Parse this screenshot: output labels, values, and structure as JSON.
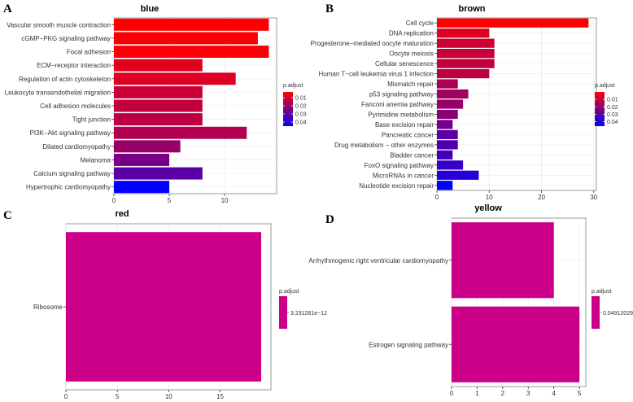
{
  "chart_data": [
    {
      "panel": "A",
      "type": "bar",
      "orientation": "horizontal",
      "title": "blue",
      "categories": [
        "Vascular smooth muscle contraction",
        "cGMP−PKG signaling pathway",
        "Focal adhesion",
        "ECM−receptor interaction",
        "Regulation of actin cytoskeleton",
        "Leukocyte transendothelial migration",
        "Cell adhesion molecules",
        "Tight junction",
        "PI3K−Akt signaling pathway",
        "Dilated cardiomyopathy",
        "Melanoma",
        "Calcium signaling pathway",
        "Hypertrophic cardiomyopathy"
      ],
      "values": [
        14,
        13,
        14,
        8,
        11,
        8,
        8,
        8,
        12,
        6,
        5,
        8,
        5
      ],
      "p_adjust": [
        0.003,
        0.004,
        0.004,
        0.008,
        0.009,
        0.012,
        0.013,
        0.014,
        0.016,
        0.02,
        0.025,
        0.03,
        0.045
      ],
      "xlim": [
        0,
        14.7
      ],
      "xticks": [
        "0",
        "5",
        "10"
      ],
      "xtick_values": [
        0,
        5,
        10
      ],
      "legend": {
        "title": "p.adjust",
        "labels": [
          "0.01",
          "0.02",
          "0.03",
          "0.04"
        ],
        "values": [
          0.01,
          0.02,
          0.03,
          0.04
        ],
        "range": [
          0.003,
          0.045
        ]
      }
    },
    {
      "panel": "B",
      "type": "bar",
      "orientation": "horizontal",
      "title": "brown",
      "categories": [
        "Cell cycle",
        "DNA replication",
        "Progesterone−mediated oocyte maturation",
        "Oocyte meiosis",
        "Cellular senescence",
        "Human T−cell leukemia virus 1 infection",
        "Mismatch repair",
        "p53 signaling pathway",
        "Fanconi anemia pathway",
        "Pyrimidine metabolism",
        "Base excision repair",
        "Pancreatic cancer",
        "Drug metabolism − other enzymes",
        "Bladder cancer",
        "FoxO signaling pathway",
        "MicroRNAs in cancer",
        "Nucleotide excision repair"
      ],
      "values": [
        29,
        10,
        11,
        11,
        11,
        10,
        4,
        6,
        5,
        4,
        3,
        4,
        4,
        3,
        5,
        8,
        3
      ],
      "p_adjust": [
        0.0,
        0.006,
        0.009,
        0.01,
        0.011,
        0.012,
        0.015,
        0.017,
        0.019,
        0.021,
        0.025,
        0.03,
        0.032,
        0.034,
        0.036,
        0.039,
        0.046
      ],
      "xlim": [
        0,
        30.5
      ],
      "xticks": [
        "0",
        "10",
        "20",
        "30"
      ],
      "xtick_values": [
        0,
        10,
        20,
        30
      ],
      "legend": {
        "title": "p.adjust",
        "labels": [
          "0.01",
          "0.02",
          "0.03",
          "0.04"
        ],
        "values": [
          0.01,
          0.02,
          0.03,
          0.04
        ],
        "range": [
          0.0,
          0.046
        ]
      }
    },
    {
      "panel": "C",
      "type": "bar",
      "orientation": "horizontal",
      "title": "red",
      "categories": [
        "Ribosome"
      ],
      "values": [
        19
      ],
      "p_adjust": [
        3.231281e-12
      ],
      "xlim": [
        0,
        19.95
      ],
      "xticks": [
        "0",
        "5",
        "10",
        "15"
      ],
      "xtick_values": [
        0,
        5,
        10,
        15
      ],
      "legend": {
        "title": "p.adjust",
        "labels": [
          "3.231281e−12"
        ],
        "values": [
          3.231281e-12
        ]
      }
    },
    {
      "panel": "D",
      "type": "bar",
      "orientation": "horizontal",
      "title": "yellow",
      "categories": [
        "Arrhythmogenic right ventricular cardiomyopathy",
        "Estrogen signaling pathway"
      ],
      "values": [
        4,
        5
      ],
      "p_adjust": [
        0.04912029,
        0.04912029
      ],
      "xlim": [
        0,
        5.25
      ],
      "xticks": [
        "0",
        "1",
        "2",
        "3",
        "4",
        "5"
      ],
      "xtick_values": [
        0,
        1,
        2,
        3,
        4,
        5
      ],
      "legend": {
        "title": "p.adjust",
        "labels": [
          "0.04912029"
        ],
        "values": [
          0.04912029
        ]
      }
    }
  ],
  "colors": {
    "low": "#ff0000",
    "high": "#0000ff",
    "single": "#cc0088",
    "panel_bg": "#ffffff",
    "grid": "#ebebeb",
    "border": "#7f7f7f"
  }
}
